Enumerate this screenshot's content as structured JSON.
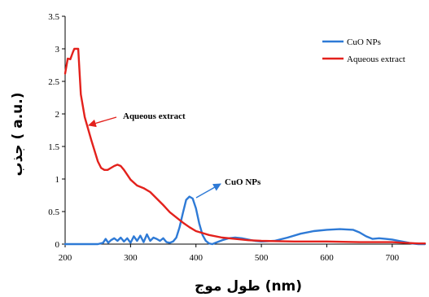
{
  "chart_data": {
    "type": "line",
    "xlabel": "طول موج (nm)",
    "ylabel": "جذب ( a.u.)",
    "xlim": [
      200,
      750
    ],
    "ylim": [
      0,
      3.5
    ],
    "x_ticks": [
      200,
      300,
      400,
      500,
      600,
      700
    ],
    "y_ticks": [
      0,
      0.5,
      1,
      1.5,
      2,
      2.5,
      3,
      3.5
    ],
    "legend_position": "top-right",
    "grid": false,
    "series": [
      {
        "name": "CuO NPs",
        "color": "#2e7ad6",
        "x": [
          200,
          250,
          258,
          262,
          266,
          270,
          275,
          280,
          285,
          290,
          295,
          300,
          305,
          310,
          315,
          320,
          325,
          330,
          335,
          340,
          345,
          350,
          355,
          360,
          365,
          370,
          375,
          380,
          385,
          390,
          395,
          400,
          405,
          410,
          415,
          420,
          425,
          430,
          440,
          450,
          460,
          470,
          480,
          490,
          500,
          520,
          540,
          560,
          580,
          600,
          620,
          640,
          650,
          660,
          670,
          680,
          690,
          700,
          710,
          720,
          730,
          740,
          750
        ],
        "y": [
          0,
          0,
          0.02,
          0.08,
          0.02,
          0.06,
          0.09,
          0.05,
          0.1,
          0.04,
          0.09,
          0.02,
          0.12,
          0.05,
          0.13,
          0.03,
          0.15,
          0.05,
          0.1,
          0.08,
          0.05,
          0.09,
          0.03,
          0.02,
          0.04,
          0.1,
          0.26,
          0.48,
          0.68,
          0.73,
          0.7,
          0.55,
          0.32,
          0.14,
          0.05,
          0.01,
          0.0,
          0.02,
          0.06,
          0.09,
          0.1,
          0.09,
          0.07,
          0.05,
          0.04,
          0.05,
          0.1,
          0.16,
          0.2,
          0.22,
          0.23,
          0.22,
          0.18,
          0.12,
          0.08,
          0.09,
          0.08,
          0.07,
          0.05,
          0.03,
          0.01,
          0.0,
          0.0
        ]
      },
      {
        "name": "Aqueous extract",
        "color": "#e3211c",
        "x": [
          200,
          204,
          208,
          212,
          214,
          216,
          220,
          224,
          230,
          240,
          250,
          255,
          260,
          265,
          270,
          275,
          280,
          285,
          290,
          300,
          310,
          320,
          330,
          340,
          350,
          360,
          370,
          380,
          390,
          400,
          420,
          440,
          460,
          480,
          500,
          550,
          600,
          650,
          700,
          720,
          740,
          750
        ],
        "y": [
          2.62,
          2.85,
          2.84,
          2.95,
          3.0,
          3.0,
          3.0,
          2.3,
          1.95,
          1.6,
          1.27,
          1.17,
          1.14,
          1.14,
          1.17,
          1.2,
          1.22,
          1.2,
          1.14,
          0.99,
          0.9,
          0.86,
          0.8,
          0.7,
          0.6,
          0.49,
          0.41,
          0.33,
          0.26,
          0.2,
          0.14,
          0.1,
          0.08,
          0.06,
          0.05,
          0.04,
          0.04,
          0.03,
          0.03,
          0.02,
          0.01,
          0.01
        ]
      }
    ],
    "annotations": [
      {
        "text": "Aqueous extract",
        "target_x": 240,
        "target_y": 1.8
      },
      {
        "text": "CuO NPs",
        "target_x": 392,
        "target_y": 0.74
      }
    ]
  }
}
